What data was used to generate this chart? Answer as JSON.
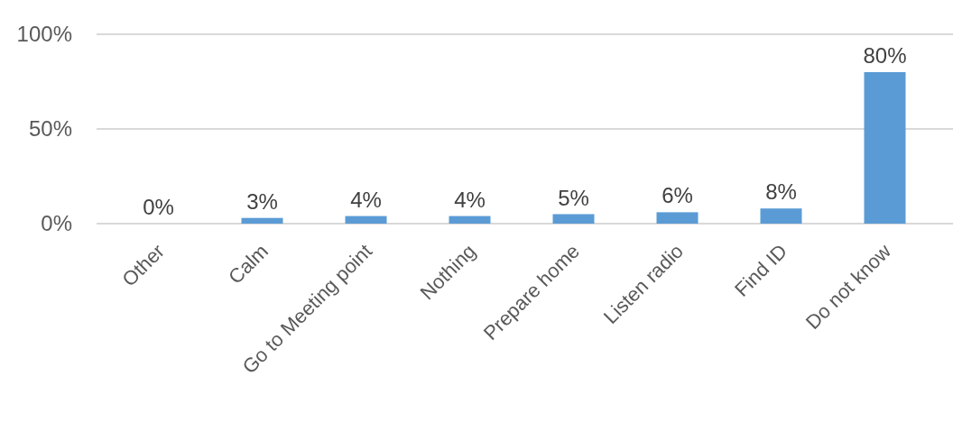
{
  "chart_data": {
    "type": "bar",
    "categories": [
      "Other",
      "Calm",
      "Go to Meeting point",
      "Nothing",
      "Prepare home",
      "Listen radio",
      "Find ID",
      "Do not know"
    ],
    "values": [
      0,
      3,
      4,
      4,
      5,
      6,
      8,
      80
    ],
    "value_labels": [
      "0%",
      "3%",
      "4%",
      "4%",
      "5%",
      "6%",
      "8%",
      "80%"
    ],
    "color": "#5b9bd5",
    "ylim": [
      0,
      100
    ],
    "yticks": [
      {
        "value": 0,
        "label": "0%"
      },
      {
        "value": 50,
        "label": "50%"
      },
      {
        "value": 100,
        "label": "100%"
      }
    ],
    "grid": "y"
  }
}
